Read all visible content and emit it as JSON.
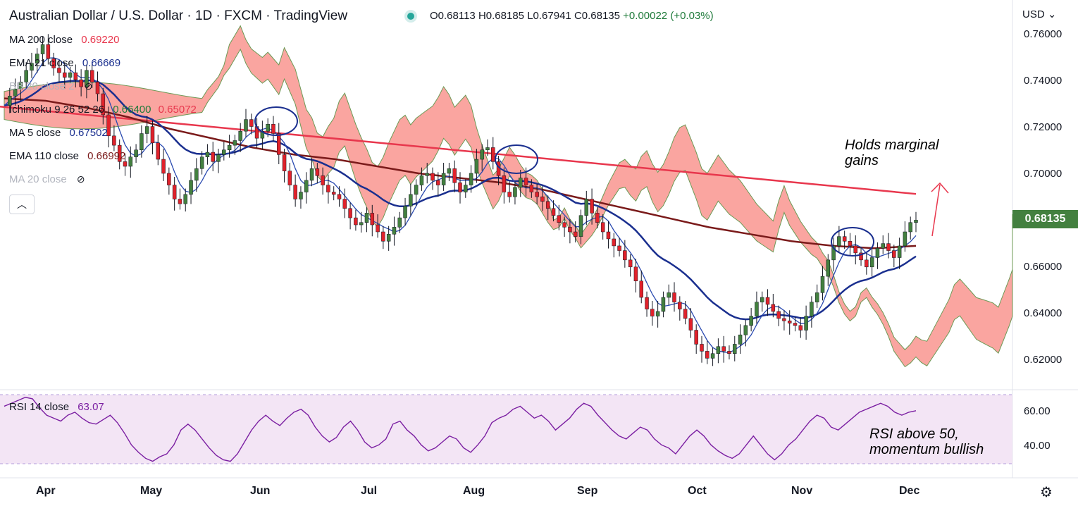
{
  "header": {
    "title": "Australian Dollar / U.S. Dollar · 1D · FXCM · TradingView",
    "open": "O0.68113",
    "high": "H0.68185",
    "low": "L0.67941",
    "close": "C0.68135",
    "change": "+0.00022 (+0.03%)"
  },
  "indicators": {
    "ma200": {
      "name": "MA 200 close",
      "value": "0.69220",
      "color": "#e8374d"
    },
    "ema21": {
      "name": "EMA 21 close",
      "value": "0.66669",
      "color": "#1a2f8f"
    },
    "bb": {
      "name": "BB 20 close 2",
      "color": "#b2b5be"
    },
    "ichimoku": {
      "name": "Ichimoku 9 26 52 26",
      "value1": "0.66400",
      "value2": "0.65072",
      "color1": "#1e7a3a",
      "color2": "#e8374d"
    },
    "ma5": {
      "name": "MA 5 close",
      "value": "0.67502",
      "color": "#1a2f8f"
    },
    "ema110": {
      "name": "EMA 110 close",
      "value": "0.66992",
      "color": "#7a1a1a"
    },
    "ma20": {
      "name": "MA 20 close",
      "color": "#b2b5be"
    },
    "rsi": {
      "name": "RSI 14 close",
      "value": "63.07",
      "color": "#7b1fa2"
    }
  },
  "axis": {
    "currency": "USD",
    "price_labels": [
      "0.76000",
      "0.74000",
      "0.72000",
      "0.70000",
      "0.66000",
      "0.64000",
      "0.62000"
    ],
    "rsi_labels": [
      "60.00",
      "40.00"
    ],
    "last_price": "0.68135",
    "months": [
      "Apr",
      "May",
      "Jun",
      "Jul",
      "Aug",
      "Sep",
      "Oct",
      "Nov",
      "Dec"
    ]
  },
  "annotations": {
    "top_line1": "Holds marginal",
    "top_line2": "gains",
    "rsi_line1": "RSI above 50,",
    "rsi_line2": "momentum bullish"
  },
  "chart_data": {
    "type": "candlestick",
    "title": "Australian Dollar / U.S. Dollar · 1D · FXCM · TradingView",
    "y_range": [
      0.61,
      0.765
    ],
    "rsi_range": [
      25,
      75
    ],
    "x_months": [
      "Apr",
      "May",
      "Jun",
      "Jul",
      "Aug",
      "Sep",
      "Oct",
      "Nov",
      "Dec"
    ],
    "close_series": [
      0.73,
      0.734,
      0.737,
      0.74,
      0.745,
      0.748,
      0.752,
      0.756,
      0.75,
      0.746,
      0.744,
      0.742,
      0.744,
      0.741,
      0.738,
      0.745,
      0.74,
      0.735,
      0.726,
      0.717,
      0.713,
      0.706,
      0.704,
      0.708,
      0.711,
      0.718,
      0.721,
      0.714,
      0.707,
      0.701,
      0.696,
      0.69,
      0.688,
      0.692,
      0.698,
      0.703,
      0.708,
      0.71,
      0.706,
      0.709,
      0.711,
      0.713,
      0.715,
      0.719,
      0.724,
      0.721,
      0.716,
      0.719,
      0.722,
      0.718,
      0.709,
      0.702,
      0.696,
      0.69,
      0.693,
      0.698,
      0.703,
      0.7,
      0.696,
      0.693,
      0.692,
      0.69,
      0.686,
      0.682,
      0.679,
      0.68,
      0.684,
      0.679,
      0.676,
      0.672,
      0.675,
      0.678,
      0.682,
      0.687,
      0.692,
      0.696,
      0.7,
      0.701,
      0.698,
      0.696,
      0.701,
      0.703,
      0.697,
      0.693,
      0.696,
      0.701,
      0.707,
      0.711,
      0.712,
      0.706,
      0.7,
      0.693,
      0.691,
      0.695,
      0.699,
      0.696,
      0.693,
      0.691,
      0.689,
      0.686,
      0.683,
      0.68,
      0.678,
      0.676,
      0.674,
      0.683,
      0.69,
      0.684,
      0.68,
      0.676,
      0.673,
      0.67,
      0.668,
      0.664,
      0.661,
      0.655,
      0.648,
      0.643,
      0.64,
      0.642,
      0.648,
      0.65,
      0.646,
      0.643,
      0.639,
      0.634,
      0.628,
      0.625,
      0.622,
      0.624,
      0.627,
      0.625,
      0.624,
      0.628,
      0.632,
      0.636,
      0.64,
      0.646,
      0.648,
      0.645,
      0.642,
      0.639,
      0.638,
      0.637,
      0.636,
      0.634,
      0.64,
      0.646,
      0.65,
      0.657,
      0.664,
      0.67,
      0.674,
      0.672,
      0.67,
      0.667,
      0.664,
      0.661,
      0.665,
      0.669,
      0.671,
      0.668,
      0.665,
      0.67,
      0.676,
      0.68,
      0.681
    ],
    "ma200_start": 0.7295,
    "ma200_end": 0.6922,
    "ema110_series": [
      0.733,
      0.732,
      0.729,
      0.725,
      0.72,
      0.716,
      0.712,
      0.709,
      0.707,
      0.704,
      0.701,
      0.699,
      0.697,
      0.694,
      0.69,
      0.686,
      0.682,
      0.678,
      0.675,
      0.672,
      0.67,
      0.669,
      0.67
    ],
    "rsi_series": [
      66,
      68,
      70,
      72,
      71,
      65,
      60,
      58,
      56,
      60,
      62,
      58,
      55,
      54,
      57,
      60,
      55,
      48,
      40,
      35,
      31,
      29,
      32,
      34,
      40,
      50,
      54,
      50,
      44,
      38,
      33,
      30,
      29,
      34,
      42,
      50,
      56,
      60,
      56,
      53,
      58,
      62,
      64,
      60,
      52,
      46,
      42,
      45,
      52,
      56,
      50,
      42,
      38,
      40,
      44,
      54,
      56,
      50,
      46,
      40,
      36,
      38,
      42,
      46,
      44,
      38,
      35,
      40,
      46,
      55,
      58,
      60,
      64,
      66,
      62,
      58,
      60,
      56,
      50,
      54,
      58,
      64,
      68,
      66,
      60,
      55,
      50,
      46,
      44,
      48,
      52,
      50,
      44,
      40,
      38,
      34,
      40,
      46,
      50,
      46,
      40,
      36,
      33,
      31,
      34,
      40,
      46,
      40,
      34,
      30,
      34,
      40,
      44,
      50,
      56,
      60,
      58,
      52,
      50,
      54,
      58,
      62,
      64,
      66,
      68,
      66,
      62,
      60,
      62,
      63
    ]
  }
}
